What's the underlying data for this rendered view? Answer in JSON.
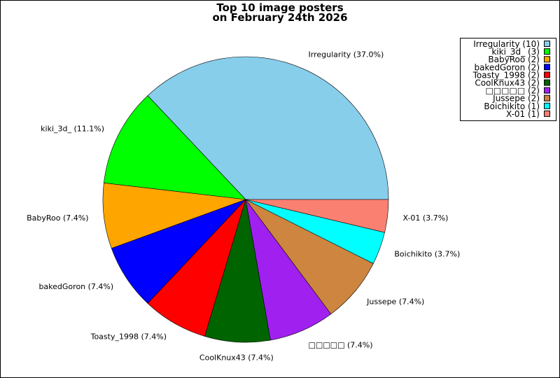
{
  "chart_data": {
    "type": "pie",
    "title": [
      "Top 10 image posters",
      "on February 24th 2026"
    ],
    "start_angle_deg": 0,
    "direction": "counterclockwise",
    "legend_position": "top-right",
    "slices": [
      {
        "name": "Irregularity",
        "value": 10,
        "label": "Irregularity (37.0%)",
        "legend": "Irregularity (10)",
        "color": "#87ceeb"
      },
      {
        "name": "kiki_3d_",
        "value": 3,
        "label": "kiki_3d_ (11.1%)",
        "legend": "kiki_3d_ (3)",
        "color": "#00ff00"
      },
      {
        "name": "BabyRoo",
        "value": 2,
        "label": "BabyRoo (7.4%)",
        "legend": "BabyRoo (2)",
        "color": "#ffa500"
      },
      {
        "name": "bakedGoron",
        "value": 2,
        "label": "bakedGoron (7.4%)",
        "legend": "bakedGoron (2)",
        "color": "#0000ff"
      },
      {
        "name": "Toasty_1998",
        "value": 2,
        "label": "Toasty_1998 (7.4%)",
        "legend": "Toasty_1998 (2)",
        "color": "#ff0000"
      },
      {
        "name": "CoolKnux43",
        "value": 2,
        "label": "CoolKnux43 (7.4%)",
        "legend": "CoolKnux43 (2)",
        "color": "#006400"
      },
      {
        "name": "□□□□□",
        "value": 2,
        "label": "□□□□□ (7.4%)",
        "legend": "□□□□□ (2)",
        "color": "#a020f0"
      },
      {
        "name": "Jussepe",
        "value": 2,
        "label": "Jussepe (7.4%)",
        "legend": "Jussepe (2)",
        "color": "#cd853f"
      },
      {
        "name": "Boichikito",
        "value": 1,
        "label": "Boichikito (3.7%)",
        "legend": "Boichikito (1)",
        "color": "#00ffff"
      },
      {
        "name": "X-01",
        "value": 1,
        "label": "X-01 (3.7%)",
        "legend": "X-01 (1)",
        "color": "#fa8072"
      }
    ]
  }
}
